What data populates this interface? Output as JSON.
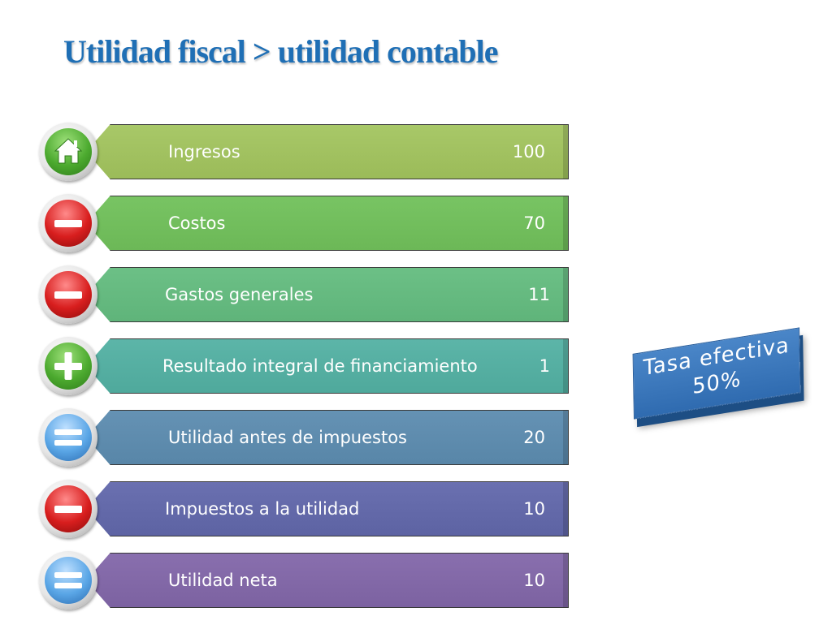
{
  "title": "Utilidad fiscal > utilidad contable",
  "rows": [
    {
      "label": "Ingresos",
      "value": "100",
      "icon": "home-icon",
      "bar_color": "#9bbb59"
    },
    {
      "label": "Costos",
      "value": "70",
      "icon": "minus-icon",
      "bar_color": "#6cb857"
    },
    {
      "label": "Gastos generales",
      "value": "11",
      "icon": "minus-icon",
      "bar_color": "#5fb47a"
    },
    {
      "label": "Resultado integral de financiamiento",
      "value": "1",
      "icon": "plus-icon",
      "bar_color": "#4fa99c"
    },
    {
      "label": "Utilidad antes de impuestos",
      "value": "20",
      "icon": "equals-icon",
      "bar_color": "#5886a8"
    },
    {
      "label": "Impuestos a la utilidad",
      "value": "10",
      "icon": "minus-icon",
      "bar_color": "#5d63a3"
    },
    {
      "label": "Utilidad neta",
      "value": "10",
      "icon": "equals-icon",
      "bar_color": "#7c62a1"
    }
  ],
  "badge": {
    "line1": "Tasa efectiva",
    "line2": "50%",
    "color": "#3e7bc1"
  }
}
